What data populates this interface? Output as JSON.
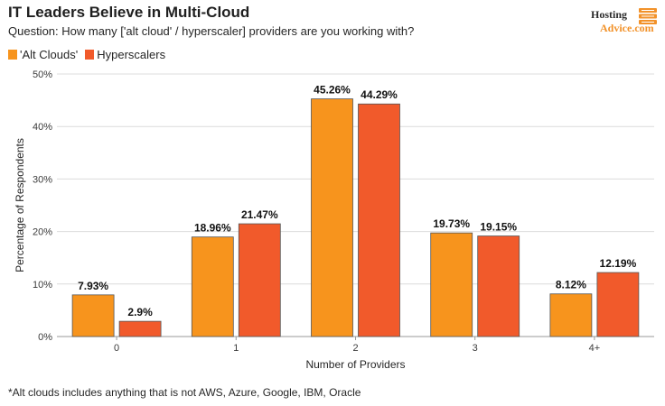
{
  "header": {
    "title": "IT Leaders Believe in Multi-Cloud",
    "subtitle": "Question: How many ['alt cloud' / hyperscaler] providers are you working with?"
  },
  "brand": {
    "line1": "Hosting",
    "line2": "Advice.com",
    "icon": "server-stack-icon"
  },
  "footnote": "*Alt clouds includes anything that is not AWS, Azure, Google, IBM, Oracle",
  "colors": {
    "alt_clouds": "#f7941d",
    "hyperscalers": "#f15a2b",
    "grid": "#dcdcdc",
    "bar_stroke": "#555555"
  },
  "chart_data": {
    "type": "bar",
    "categories": [
      "0",
      "1",
      "2",
      "3",
      "4+"
    ],
    "series": [
      {
        "name": "'Alt Clouds'",
        "values": [
          7.93,
          18.96,
          45.26,
          19.73,
          8.12
        ],
        "labels": [
          "7.93%",
          "18.96%",
          "45.26%",
          "19.73%",
          "8.12%"
        ]
      },
      {
        "name": "Hyperscalers",
        "values": [
          2.9,
          21.47,
          44.29,
          19.15,
          12.19
        ],
        "labels": [
          "2.9%",
          "21.47%",
          "44.29%",
          "19.15%",
          "12.19%"
        ]
      }
    ],
    "xlabel": "Number of Providers",
    "ylabel": "Percentage of Respondents",
    "ylim": [
      0,
      50
    ],
    "yticks": [
      0,
      10,
      20,
      30,
      40,
      50
    ],
    "ytick_labels": [
      "0%",
      "10%",
      "20%",
      "30%",
      "40%",
      "50%"
    ],
    "grid": true,
    "legend_position": "top-left"
  }
}
